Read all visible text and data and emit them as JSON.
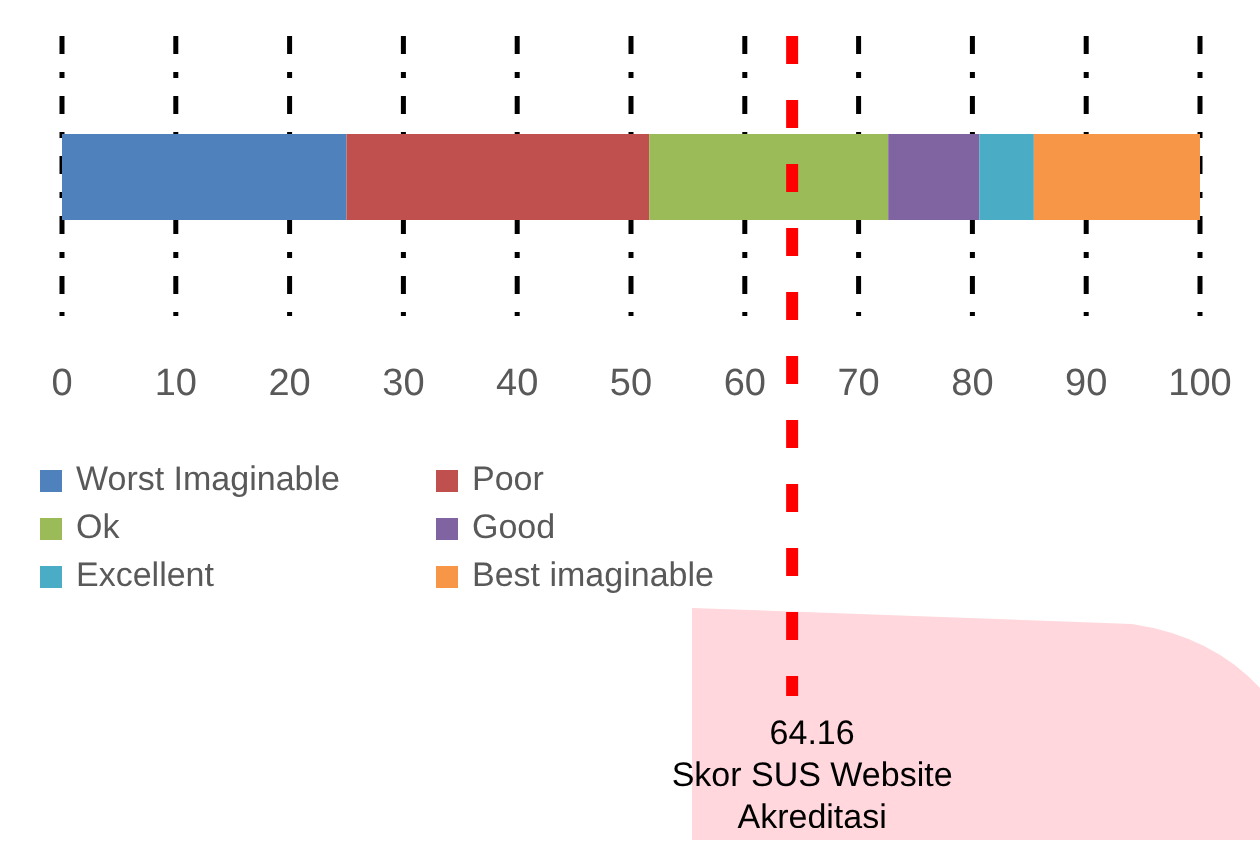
{
  "chart_data": {
    "type": "bar",
    "orientation": "horizontal",
    "stacked": true,
    "categories": [
      null
    ],
    "series": [
      {
        "name": "Worst Imaginable",
        "color": "#4f81bd",
        "values": [
          25
        ]
      },
      {
        "name": "Poor",
        "color": "#c0504d",
        "values": [
          26.6
        ]
      },
      {
        "name": "Ok",
        "color": "#9bbb59",
        "values": [
          21
        ]
      },
      {
        "name": "Good",
        "color": "#8064a2",
        "values": [
          8
        ]
      },
      {
        "name": "Excellent",
        "color": "#4bacc6",
        "values": [
          4.8
        ]
      },
      {
        "name": "Best imaginable",
        "color": "#f79646",
        "values": [
          14.6
        ]
      }
    ],
    "xlim": [
      0,
      100
    ],
    "xticks": [
      0,
      10,
      20,
      30,
      40,
      50,
      60,
      70,
      80,
      90,
      100
    ],
    "grid": "x",
    "legend": "bottom",
    "tick_labels": "x",
    "ref_lines": [
      {
        "axis": "x",
        "value": 64.16,
        "label": "64.16\nSkor SUS Website Akreditasi",
        "color": "#ff0000",
        "line_style": "dashed"
      }
    ]
  }
}
